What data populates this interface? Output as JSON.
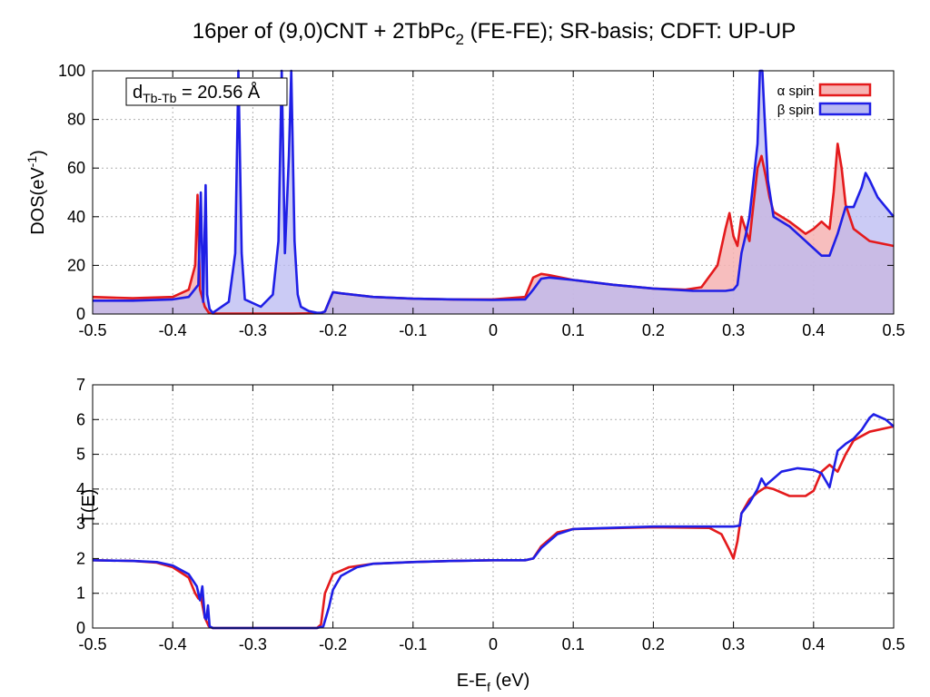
{
  "title": "16per of (9,0)CNT + 2TbPc",
  "title_sub": "2",
  "title_rest": " (FE-FE); SR-basis; CDFT: UP-UP",
  "annotation": {
    "prefix": "d",
    "subscript": "Tb-Tb",
    "value": " = 20.56 Å"
  },
  "colors": {
    "alpha": "#e41a1c",
    "beta": "#1f1fe6",
    "alpha_fill": "#f6b3b3",
    "beta_fill": "#b9b9f2",
    "overlap_fill": "#c39ad6"
  },
  "chart_data": [
    {
      "type": "area",
      "panel": "top",
      "ylabel_main": "DOS(eV",
      "ylabel_sup": "-1",
      "ylabel_close": ")",
      "xlim": [
        -0.5,
        0.5
      ],
      "ylim": [
        0,
        100
      ],
      "xticks": [
        "-0.5",
        "-0.4",
        "-0.3",
        "-0.2",
        "-0.1",
        "0",
        "0.1",
        "0.2",
        "0.3",
        "0.4",
        "0.5"
      ],
      "yticks": [
        "0",
        "20",
        "40",
        "60",
        "80",
        "100"
      ],
      "grid": true,
      "legend_position": "top-right",
      "series": [
        {
          "name": "α spin",
          "x": [
            -0.5,
            -0.45,
            -0.4,
            -0.38,
            -0.372,
            -0.369,
            -0.366,
            -0.36,
            -0.355,
            -0.35,
            -0.3,
            -0.25,
            -0.22,
            -0.215,
            -0.21,
            -0.2,
            -0.19,
            -0.15,
            -0.1,
            -0.05,
            0.0,
            0.04,
            0.05,
            0.06,
            0.07,
            0.1,
            0.15,
            0.2,
            0.24,
            0.26,
            0.28,
            0.29,
            0.295,
            0.3,
            0.305,
            0.31,
            0.32,
            0.325,
            0.33,
            0.335,
            0.34,
            0.345,
            0.35,
            0.37,
            0.39,
            0.4,
            0.41,
            0.42,
            0.425,
            0.43,
            0.435,
            0.44,
            0.45,
            0.47,
            0.5
          ],
          "values": [
            7,
            6.5,
            7,
            10,
            20,
            49,
            10,
            3,
            0.5,
            0.2,
            0.2,
            0.2,
            0.3,
            0.5,
            1,
            9,
            8.5,
            7,
            6.3,
            6,
            6,
            7,
            15,
            16.5,
            16,
            14,
            12,
            10.5,
            10,
            11,
            20,
            35,
            41.5,
            32,
            28,
            40,
            30,
            45,
            60,
            65,
            57,
            48,
            42,
            38,
            33,
            35,
            38,
            35,
            50,
            70,
            60,
            45,
            35,
            30,
            28
          ]
        },
        {
          "name": "β spin",
          "x": [
            -0.5,
            -0.45,
            -0.4,
            -0.38,
            -0.368,
            -0.365,
            -0.362,
            -0.359,
            -0.357,
            -0.354,
            -0.35,
            -0.33,
            -0.322,
            -0.318,
            -0.314,
            -0.31,
            -0.29,
            -0.275,
            -0.268,
            -0.264,
            -0.26,
            -0.255,
            -0.252,
            -0.248,
            -0.244,
            -0.24,
            -0.23,
            -0.22,
            -0.215,
            -0.21,
            -0.2,
            -0.19,
            -0.15,
            -0.1,
            -0.05,
            0.0,
            0.04,
            0.05,
            0.06,
            0.07,
            0.1,
            0.15,
            0.2,
            0.25,
            0.29,
            0.3,
            0.305,
            0.31,
            0.315,
            0.32,
            0.33,
            0.333,
            0.336,
            0.339,
            0.343,
            0.35,
            0.37,
            0.39,
            0.41,
            0.42,
            0.43,
            0.44,
            0.45,
            0.46,
            0.465,
            0.47,
            0.48,
            0.5
          ],
          "values": [
            5.5,
            5.5,
            6,
            7,
            12,
            50,
            5,
            53,
            8,
            2,
            0.5,
            5,
            25,
            100,
            25,
            6,
            3,
            8,
            30,
            100,
            25,
            65,
            100,
            30,
            8,
            3,
            1.2,
            0.5,
            0.5,
            1,
            9,
            8.5,
            7,
            6.3,
            6,
            5.8,
            6,
            10,
            14.5,
            15,
            14,
            12,
            10.5,
            9.5,
            9.5,
            10,
            12,
            25,
            32,
            40,
            70,
            100,
            100,
            80,
            55,
            40,
            36,
            30,
            24,
            24,
            33,
            44,
            44,
            52,
            58,
            55,
            48,
            40
          ]
        }
      ]
    },
    {
      "type": "line",
      "panel": "bottom",
      "ylabel": "T(E)",
      "xlabel_main": "E-E",
      "xlabel_sub": "f",
      "xlabel_rest": " (eV)",
      "xlim": [
        -0.5,
        0.5
      ],
      "ylim": [
        0,
        7
      ],
      "xticks": [
        "-0.5",
        "-0.4",
        "-0.3",
        "-0.2",
        "-0.1",
        "0",
        "0.1",
        "0.2",
        "0.3",
        "0.4",
        "0.5"
      ],
      "yticks": [
        "0",
        "1",
        "2",
        "3",
        "4",
        "5",
        "6",
        "7"
      ],
      "grid": true,
      "series": [
        {
          "name": "α spin",
          "x": [
            -0.5,
            -0.45,
            -0.42,
            -0.4,
            -0.38,
            -0.372,
            -0.368,
            -0.365,
            -0.36,
            -0.355,
            -0.35,
            -0.3,
            -0.25,
            -0.22,
            -0.215,
            -0.21,
            -0.2,
            -0.18,
            -0.15,
            -0.1,
            -0.05,
            0.0,
            0.04,
            0.05,
            0.06,
            0.08,
            0.1,
            0.2,
            0.27,
            0.285,
            0.295,
            0.3,
            0.305,
            0.31,
            0.32,
            0.33,
            0.34,
            0.35,
            0.37,
            0.39,
            0.4,
            0.41,
            0.42,
            0.43,
            0.44,
            0.45,
            0.47,
            0.5
          ],
          "values": [
            1.95,
            1.93,
            1.88,
            1.75,
            1.45,
            1.0,
            0.85,
            0.9,
            0.3,
            0.05,
            0,
            0,
            0,
            0,
            0.1,
            1.0,
            1.55,
            1.75,
            1.85,
            1.9,
            1.93,
            1.95,
            1.95,
            2.0,
            2.35,
            2.75,
            2.85,
            2.9,
            2.88,
            2.7,
            2.25,
            2.0,
            2.5,
            3.3,
            3.7,
            3.9,
            4.05,
            4.0,
            3.8,
            3.8,
            3.95,
            4.5,
            4.7,
            4.5,
            5.0,
            5.4,
            5.65,
            5.8
          ]
        },
        {
          "name": "β spin",
          "x": [
            -0.5,
            -0.45,
            -0.42,
            -0.4,
            -0.38,
            -0.37,
            -0.366,
            -0.363,
            -0.36,
            -0.358,
            -0.356,
            -0.354,
            -0.35,
            -0.3,
            -0.25,
            -0.22,
            -0.212,
            -0.205,
            -0.2,
            -0.19,
            -0.17,
            -0.15,
            -0.1,
            -0.05,
            0.0,
            0.04,
            0.05,
            0.06,
            0.08,
            0.1,
            0.2,
            0.3,
            0.308,
            0.31,
            0.32,
            0.33,
            0.335,
            0.34,
            0.36,
            0.38,
            0.4,
            0.41,
            0.42,
            0.43,
            0.44,
            0.45,
            0.46,
            0.47,
            0.475,
            0.48,
            0.49,
            0.5
          ],
          "values": [
            1.95,
            1.93,
            1.9,
            1.8,
            1.55,
            1.2,
            0.8,
            1.2,
            0.3,
            0.25,
            0.65,
            0.05,
            0,
            0,
            0,
            0,
            0.05,
            0.6,
            1.1,
            1.5,
            1.75,
            1.85,
            1.9,
            1.93,
            1.95,
            1.95,
            2.0,
            2.3,
            2.7,
            2.85,
            2.92,
            2.92,
            2.95,
            3.3,
            3.6,
            4.0,
            4.3,
            4.1,
            4.5,
            4.6,
            4.55,
            4.45,
            4.05,
            5.1,
            5.3,
            5.45,
            5.7,
            6.05,
            6.15,
            6.1,
            6.0,
            5.8
          ]
        }
      ]
    }
  ]
}
